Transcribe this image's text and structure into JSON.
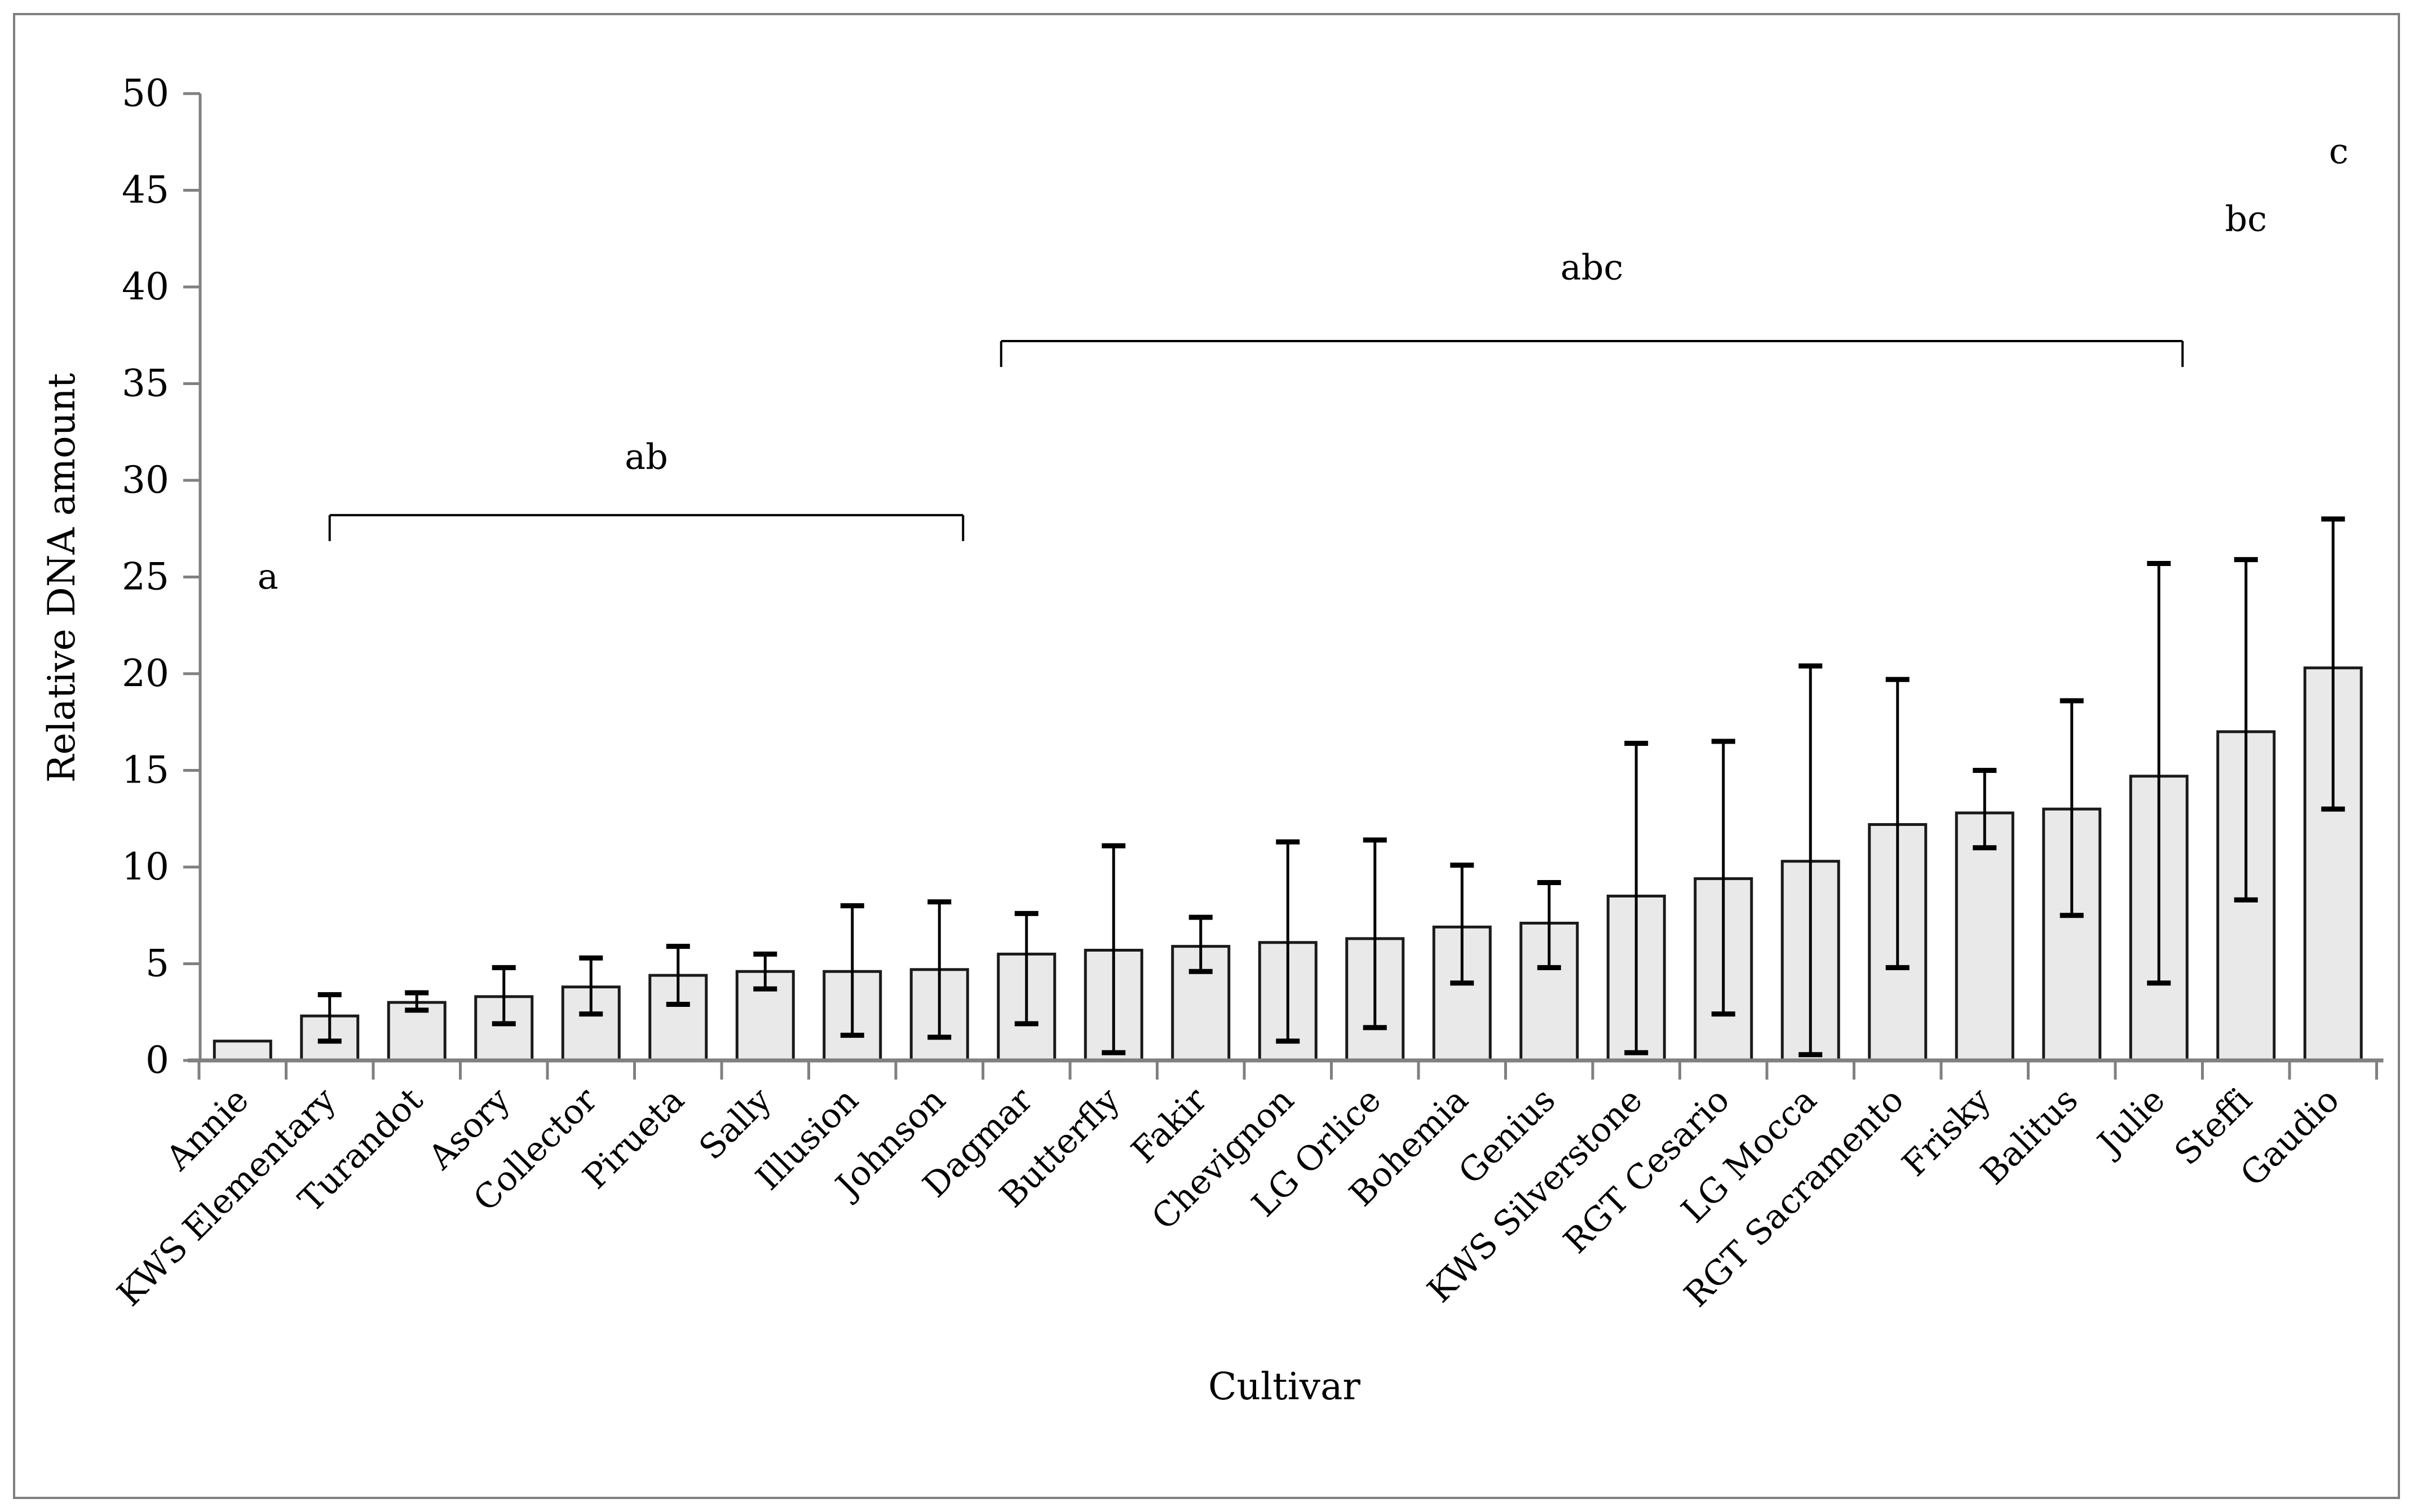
{
  "figure": {
    "background": "#ffffff",
    "border_color": "#7f7f7f",
    "axis_color": "#808080",
    "text_color": "#000000"
  },
  "chart_data": {
    "type": "bar",
    "title": "",
    "xlabel": "Cultivar",
    "ylabel": "Relative DNA amount",
    "ylim": [
      0,
      50
    ],
    "yticks": [
      0,
      5,
      10,
      15,
      20,
      25,
      30,
      35,
      40,
      45,
      50
    ],
    "grid": false,
    "legend": null,
    "bar_fill": "#e9e9e9",
    "bar_edge": "#1a1a1a",
    "error_color": "#000000",
    "categories": [
      "Annie",
      "KWS Elementary",
      "Turandot",
      "Asory",
      "Collector",
      "Pirueta",
      "Sally",
      "Illusion",
      "Johnson",
      "Dagmar",
      "Butterfly",
      "Fakir",
      "Chevignon",
      "LG Orlice",
      "Bohemia",
      "Genius",
      "KWS Silverstone",
      "RGT Cesario",
      "LG Mocca",
      "RGT Sacramento",
      "Frisky",
      "Balitus",
      "Julie",
      "Steffi",
      "Gaudio"
    ],
    "values": [
      1.0,
      2.3,
      3.0,
      3.3,
      3.8,
      4.4,
      4.6,
      4.6,
      4.7,
      5.5,
      5.7,
      5.9,
      6.1,
      6.3,
      6.9,
      7.1,
      8.5,
      9.4,
      10.3,
      12.2,
      12.8,
      13.0,
      14.7,
      17.0,
      20.3
    ],
    "error_low": [
      null,
      1.0,
      2.6,
      1.9,
      2.4,
      2.9,
      3.7,
      1.3,
      1.2,
      1.9,
      0.4,
      4.6,
      1.0,
      1.7,
      4.0,
      4.8,
      0.4,
      2.4,
      0.3,
      4.8,
      11.0,
      7.5,
      4.0,
      8.3,
      13.0
    ],
    "error_high": [
      null,
      3.4,
      3.5,
      4.8,
      5.3,
      5.9,
      5.5,
      8.0,
      8.2,
      7.6,
      11.1,
      7.4,
      11.3,
      11.4,
      10.1,
      9.2,
      16.4,
      16.5,
      20.4,
      19.7,
      15.0,
      18.6,
      25.7,
      25.9,
      28.0
    ],
    "significance_brackets": [
      {
        "label": "ab",
        "from": "KWS Elementary",
        "to": "Johnson",
        "y": 28.2,
        "label_y": 30.6
      },
      {
        "label": "abc",
        "from": "Dagmar",
        "to": "Julie",
        "y": 37.2,
        "label_y": 40.4
      }
    ],
    "significance_letters": [
      {
        "text": "a",
        "over": "Annie",
        "dx": 45,
        "y": 24.4
      },
      {
        "text": "bc",
        "over": "Steffi",
        "dx": 0,
        "y": 42.9
      },
      {
        "text": "c",
        "over": "Gaudio",
        "dx": 10,
        "y": 46.4
      }
    ]
  }
}
